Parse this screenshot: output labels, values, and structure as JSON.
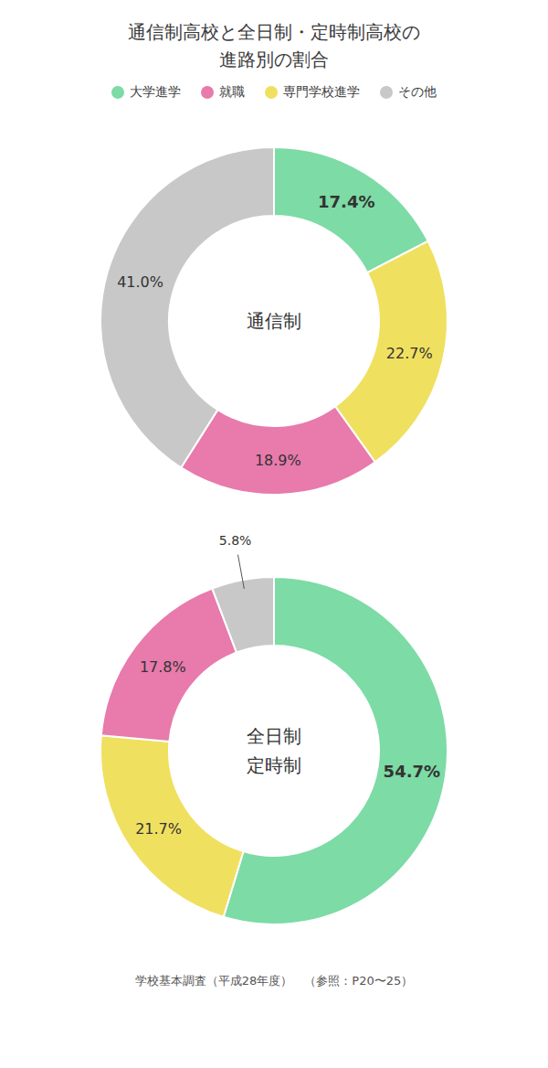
{
  "title": "通信制高校と全日制・定時制高校の\n進路別の割合",
  "categories": [
    "大学進学",
    "就職",
    "専門学校進学",
    "その他"
  ],
  "colors": [
    "#7ddba5",
    "#e87aac",
    "#f0e060",
    "#c8c8c8"
  ],
  "legend": "top",
  "annotations": [
    "学校基本調査（平成28年度）　（参照：P20〜25）"
  ],
  "chart_data": [
    {
      "type": "pie",
      "title": "通信制",
      "categories": [
        "大学進学",
        "専門学校進学",
        "就職",
        "その他"
      ],
      "values": [
        17.4,
        22.7,
        18.9,
        41.0
      ],
      "value_labels": [
        "17.4%",
        "22.7%",
        "18.9%",
        "41.0%"
      ],
      "colors": [
        "#7ddba5",
        "#f0e060",
        "#e87aac",
        "#c8c8c8"
      ],
      "data_labels": true
    },
    {
      "type": "pie",
      "title": "全日制\n定時制",
      "categories": [
        "大学進学",
        "専門学校進学",
        "就職",
        "その他"
      ],
      "values": [
        54.7,
        21.7,
        17.8,
        5.8
      ],
      "value_labels": [
        "54.7%",
        "21.7%",
        "17.8%",
        "5.8%"
      ],
      "colors": [
        "#7ddba5",
        "#f0e060",
        "#e87aac",
        "#c8c8c8"
      ],
      "data_labels": true
    }
  ]
}
